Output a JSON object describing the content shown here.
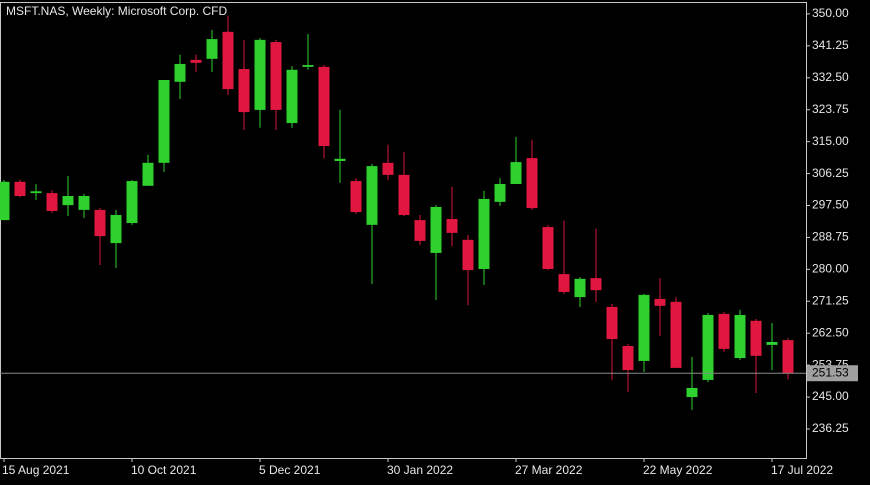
{
  "chart_data": {
    "type": "candlestick",
    "title": "MSFT.NAS, Weekly:  Microsoft Corp. CFD",
    "categories": [
      "15 Aug 2021",
      null,
      null,
      null,
      null,
      null,
      null,
      null,
      "10 Oct 2021",
      null,
      null,
      null,
      null,
      null,
      null,
      null,
      "5 Dec 2021",
      null,
      null,
      null,
      null,
      null,
      null,
      null,
      "30 Jan 2022",
      null,
      null,
      null,
      null,
      null,
      null,
      null,
      "27 Mar 2022",
      null,
      null,
      null,
      null,
      null,
      null,
      null,
      "22 May 2022",
      null,
      null,
      null,
      null,
      null,
      null,
      null,
      "17 Jul 2022",
      null
    ],
    "open": [
      293.5,
      304.0,
      300.9,
      300.9,
      297.6,
      296.3,
      296.3,
      287.2,
      292.7,
      302.9,
      309.2,
      331.4,
      337.4,
      337.7,
      345.1,
      334.9,
      323.7,
      342.3,
      320.1,
      335.5,
      335.5,
      309.7,
      304.2,
      292.2,
      309.2,
      305.9,
      293.5,
      284.5,
      293.8,
      288.1,
      280.1,
      298.5,
      303.4,
      310.5,
      291.6,
      278.7,
      272.4,
      277.6,
      269.7,
      259.0,
      254.9,
      271.9,
      271.1,
      245.0,
      249.7,
      267.8,
      255.7,
      265.9,
      259.3,
      260.6
    ],
    "high": [
      304.5,
      304.5,
      303.4,
      301.7,
      305.6,
      300.7,
      296.8,
      296.3,
      304.5,
      311.4,
      331.9,
      338.8,
      338.8,
      345.6,
      349.5,
      342.9,
      343.4,
      342.9,
      335.7,
      344.5,
      336.0,
      323.7,
      305.0,
      308.9,
      314.1,
      312.2,
      294.9,
      297.6,
      302.6,
      289.4,
      301.5,
      305.0,
      316.3,
      315.5,
      292.2,
      293.3,
      277.9,
      291.1,
      270.5,
      259.5,
      273.3,
      277.6,
      272.4,
      256.0,
      268.0,
      268.3,
      268.9,
      266.4,
      265.3,
      261.2
    ],
    "low": [
      293.5,
      299.8,
      299.0,
      295.5,
      294.6,
      294.1,
      281.2,
      280.4,
      292.2,
      302.9,
      306.7,
      326.7,
      334.1,
      334.1,
      327.8,
      318.2,
      318.8,
      318.2,
      318.8,
      334.7,
      310.5,
      303.7,
      295.2,
      276.0,
      304.5,
      294.6,
      286.7,
      271.6,
      286.4,
      270.2,
      275.7,
      297.4,
      303.4,
      296.3,
      279.8,
      273.3,
      269.7,
      271.1,
      249.7,
      246.4,
      251.9,
      261.7,
      253.0,
      241.5,
      249.1,
      257.4,
      255.2,
      246.1,
      252.4,
      249.9
    ],
    "close": [
      304.0,
      300.1,
      301.4,
      296.0,
      300.1,
      300.1,
      289.1,
      294.9,
      304.2,
      309.2,
      331.9,
      336.3,
      336.6,
      343.1,
      329.4,
      323.1,
      342.9,
      323.7,
      334.7,
      336.0,
      313.8,
      310.3,
      295.7,
      308.3,
      305.9,
      294.9,
      287.8,
      297.1,
      290.0,
      279.8,
      299.3,
      303.4,
      309.4,
      296.8,
      280.1,
      273.8,
      277.4,
      274.3,
      260.9,
      252.4,
      273.0,
      270.0,
      253.0,
      247.5,
      267.5,
      258.2,
      267.5,
      256.3,
      260.1,
      251.5
    ],
    "up_color": "#2ed12e",
    "down_color": "#e0173f",
    "last_price": 251.53,
    "ylim": [
      228.3,
      353.0
    ],
    "yticks": [
      {
        "value": 350,
        "label": "350.00"
      },
      {
        "value": 341.25,
        "label": "341.25"
      },
      {
        "value": 332.5,
        "label": "332.50"
      },
      {
        "value": 323.75,
        "label": "323.75"
      },
      {
        "value": 315,
        "label": "315.00"
      },
      {
        "value": 306.25,
        "label": "306.25"
      },
      {
        "value": 297.5,
        "label": "297.50"
      },
      {
        "value": 288.75,
        "label": "288.75"
      },
      {
        "value": 280,
        "label": "280.00"
      },
      {
        "value": 271.25,
        "label": "271.25"
      },
      {
        "value": 262.5,
        "label": "262.50"
      },
      {
        "value": 253.75,
        "label": "253.75"
      },
      {
        "value": 245,
        "label": "245.00"
      },
      {
        "value": 236.25,
        "label": "236.25"
      }
    ]
  }
}
